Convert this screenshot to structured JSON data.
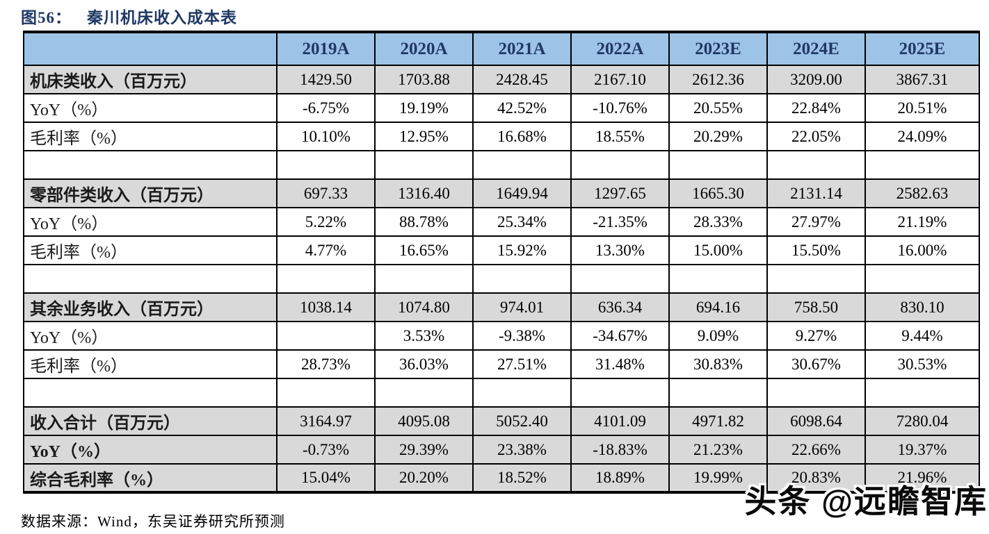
{
  "figure": {
    "label": "图56：",
    "title": "秦川机床收入成本表"
  },
  "chart_data": {
    "type": "table",
    "title": "秦川机床收入成本表",
    "columns": [
      "",
      "2019A",
      "2020A",
      "2021A",
      "2022A",
      "2023E",
      "2024E",
      "2025E"
    ],
    "rows": [
      {
        "label": "机床类收入（百万元）",
        "style": "section",
        "values": [
          "1429.50",
          "1703.88",
          "2428.45",
          "2167.10",
          "2612.36",
          "3209.00",
          "3867.31"
        ]
      },
      {
        "label": "YoY（%）",
        "style": "normal",
        "values": [
          "-6.75%",
          "19.19%",
          "42.52%",
          "-10.76%",
          "20.55%",
          "22.84%",
          "20.51%"
        ]
      },
      {
        "label": "毛利率（%）",
        "style": "normal",
        "values": [
          "10.10%",
          "12.95%",
          "16.68%",
          "18.55%",
          "20.29%",
          "22.05%",
          "24.09%"
        ]
      },
      {
        "label": "",
        "style": "spacer",
        "values": [
          "",
          "",
          "",
          "",
          "",
          "",
          ""
        ]
      },
      {
        "label": "零部件类收入（百万元）",
        "style": "section",
        "values": [
          "697.33",
          "1316.40",
          "1649.94",
          "1297.65",
          "1665.30",
          "2131.14",
          "2582.63"
        ]
      },
      {
        "label": "YoY（%）",
        "style": "normal",
        "values": [
          "5.22%",
          "88.78%",
          "25.34%",
          "-21.35%",
          "28.33%",
          "27.97%",
          "21.19%"
        ]
      },
      {
        "label": "毛利率（%）",
        "style": "normal",
        "values": [
          "4.77%",
          "16.65%",
          "15.92%",
          "13.30%",
          "15.00%",
          "15.50%",
          "16.00%"
        ]
      },
      {
        "label": "",
        "style": "spacer",
        "values": [
          "",
          "",
          "",
          "",
          "",
          "",
          ""
        ]
      },
      {
        "label": "其余业务收入（百万元）",
        "style": "section",
        "values": [
          "1038.14",
          "1074.80",
          "974.01",
          "636.34",
          "694.16",
          "758.50",
          "830.10"
        ]
      },
      {
        "label": "YoY（%）",
        "style": "normal",
        "values": [
          "",
          "3.53%",
          "-9.38%",
          "-34.67%",
          "9.09%",
          "9.27%",
          "9.44%"
        ]
      },
      {
        "label": "毛利率（%）",
        "style": "normal",
        "values": [
          "28.73%",
          "36.03%",
          "27.51%",
          "31.48%",
          "30.83%",
          "30.67%",
          "30.53%"
        ]
      },
      {
        "label": "",
        "style": "spacer",
        "values": [
          "",
          "",
          "",
          "",
          "",
          "",
          ""
        ]
      },
      {
        "label": "收入合计（百万元）",
        "style": "total",
        "values": [
          "3164.97",
          "4095.08",
          "5052.40",
          "4101.09",
          "4971.82",
          "6098.64",
          "7280.04"
        ]
      },
      {
        "label": "YoY（%）",
        "style": "total",
        "values": [
          "-0.73%",
          "29.39%",
          "23.38%",
          "-18.83%",
          "21.23%",
          "22.66%",
          "19.37%"
        ]
      },
      {
        "label": "综合毛利率（%）",
        "style": "total",
        "values": [
          "15.04%",
          "20.20%",
          "18.52%",
          "18.89%",
          "19.99%",
          "20.83%",
          "21.96%"
        ]
      }
    ]
  },
  "source_note": "数据来源：Wind，东吴证券研究所预测",
  "watermark": "头条 @远瞻智库",
  "colors": {
    "header_bg": "#9DC3E6",
    "header_text": "#1F3864",
    "section_row_bg": "#D9D9D9",
    "title_text": "#1F3864",
    "border": "#000000"
  }
}
